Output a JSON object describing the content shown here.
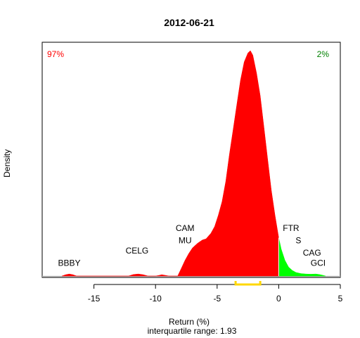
{
  "chart_data": {
    "type": "area",
    "title": "2012-06-21",
    "xlabel": "Return (%)",
    "ylabel": "Density",
    "subtitle": "interquartile range: 1.93",
    "xlim": [
      -19.2,
      5
    ],
    "ylim": [
      0,
      1
    ],
    "xticks": [
      -15,
      -10,
      -5,
      0,
      5
    ],
    "xtick_labels": [
      "-15",
      "-10",
      "-5",
      "0",
      "5"
    ],
    "colors": {
      "negative": "#ff0000",
      "positive": "#00ff00",
      "iqr": "#ffd700",
      "baseline": "#bebebe"
    },
    "pct_negative": "97%",
    "pct_positive": "2%",
    "iqr_range": [
      -3.5,
      -1.5
    ],
    "curve": [
      [
        -17.6,
        0
      ],
      [
        -17.3,
        0.006
      ],
      [
        -17.0,
        0.009
      ],
      [
        -16.7,
        0.006
      ],
      [
        -16.4,
        0
      ],
      [
        -12.2,
        0
      ],
      [
        -11.8,
        0.007
      ],
      [
        -11.4,
        0.009
      ],
      [
        -11.0,
        0.006
      ],
      [
        -10.6,
        0
      ],
      [
        -10.0,
        0
      ],
      [
        -9.7,
        0.003
      ],
      [
        -9.5,
        0.006
      ],
      [
        -9.2,
        0.003
      ],
      [
        -8.9,
        0
      ],
      [
        -8.2,
        0
      ],
      [
        -7.9,
        0.035
      ],
      [
        -7.6,
        0.07
      ],
      [
        -7.3,
        0.1
      ],
      [
        -7.0,
        0.125
      ],
      [
        -6.6,
        0.145
      ],
      [
        -6.2,
        0.16
      ],
      [
        -5.9,
        0.165
      ],
      [
        -5.5,
        0.19
      ],
      [
        -5.2,
        0.22
      ],
      [
        -4.9,
        0.27
      ],
      [
        -4.6,
        0.33
      ],
      [
        -4.3,
        0.42
      ],
      [
        -4.0,
        0.54
      ],
      [
        -3.7,
        0.65
      ],
      [
        -3.4,
        0.76
      ],
      [
        -3.1,
        0.87
      ],
      [
        -2.8,
        0.95
      ],
      [
        -2.5,
        0.99
      ],
      [
        -2.3,
        1.0
      ],
      [
        -2.1,
        0.98
      ],
      [
        -1.8,
        0.9
      ],
      [
        -1.5,
        0.8
      ],
      [
        -1.2,
        0.66
      ],
      [
        -0.9,
        0.52
      ],
      [
        -0.6,
        0.38
      ],
      [
        -0.3,
        0.27
      ],
      [
        0.0,
        0.17
      ],
      [
        0.2,
        0.12
      ],
      [
        0.5,
        0.07
      ],
      [
        0.8,
        0.04
      ],
      [
        1.1,
        0.025
      ],
      [
        1.4,
        0.016
      ],
      [
        1.8,
        0.011
      ],
      [
        2.2,
        0.009
      ],
      [
        2.6,
        0.008
      ],
      [
        3.0,
        0.009
      ],
      [
        3.3,
        0.007
      ],
      [
        3.6,
        0.003
      ],
      [
        3.8,
        0
      ]
    ],
    "annotations": [
      {
        "text": "BBBY",
        "x": -17.0,
        "y": 0.045
      },
      {
        "text": "CELG",
        "x": -11.5,
        "y": 0.1
      },
      {
        "text": "CAM",
        "x": -7.6,
        "y": 0.2
      },
      {
        "text": "MU",
        "x": -7.6,
        "y": 0.145
      },
      {
        "text": "FTR",
        "x": 1.0,
        "y": 0.2
      },
      {
        "text": "S",
        "x": 1.6,
        "y": 0.145
      },
      {
        "text": "CAG",
        "x": 2.7,
        "y": 0.09
      },
      {
        "text": "GCI",
        "x": 3.2,
        "y": 0.045
      }
    ]
  }
}
